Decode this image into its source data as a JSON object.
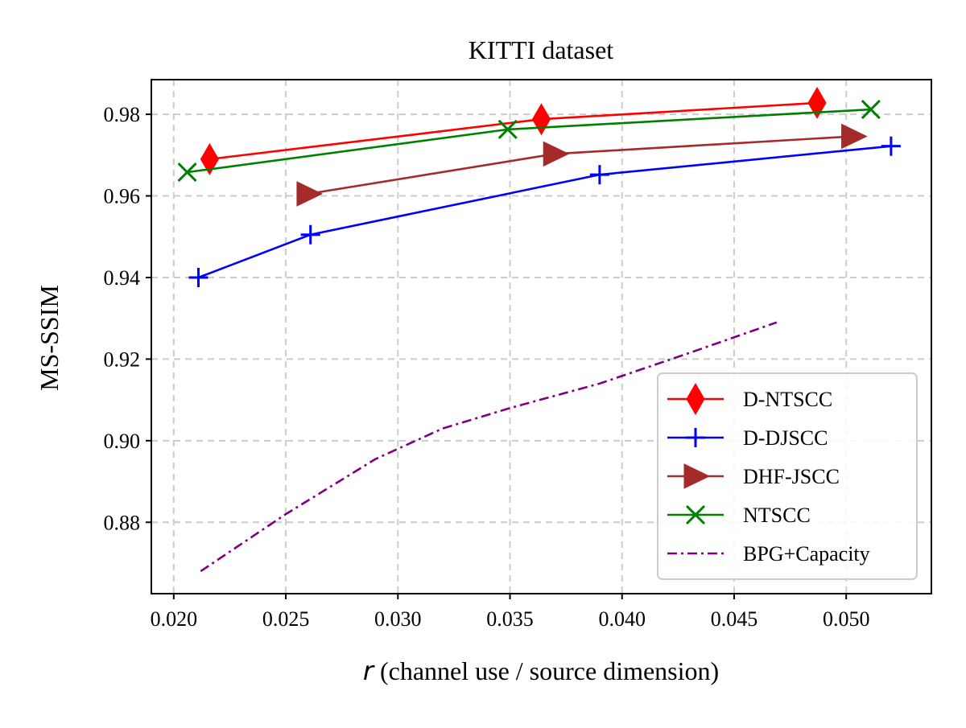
{
  "chart_data": {
    "type": "line",
    "title": "KITTI dataset",
    "xlabel_var": "r",
    "xlabel_rest": " (channel use / source dimension)",
    "ylabel": "MS-SSIM",
    "xlim": [
      0.019,
      0.0538
    ],
    "ylim": [
      0.8625,
      0.9885
    ],
    "xticks": [
      0.02,
      0.025,
      0.03,
      0.035,
      0.04,
      0.045,
      0.05
    ],
    "xtick_labels": [
      "0.020",
      "0.025",
      "0.030",
      "0.035",
      "0.040",
      "0.045",
      "0.050"
    ],
    "yticks": [
      0.88,
      0.9,
      0.92,
      0.94,
      0.96,
      0.98
    ],
    "ytick_labels": [
      "0.88",
      "0.90",
      "0.92",
      "0.94",
      "0.96",
      "0.98"
    ],
    "grid": true,
    "legend_position": "lower-right",
    "series": [
      {
        "name": "D-NTSCC",
        "color": "#ff0000",
        "marker": "diamond",
        "linestyle": "solid",
        "x": [
          0.0216,
          0.0364,
          0.0487
        ],
        "y": [
          0.969,
          0.9788,
          0.9828
        ]
      },
      {
        "name": "D-DJSCC",
        "color": "#0000ff",
        "marker": "plus",
        "linestyle": "solid",
        "x": [
          0.0211,
          0.0261,
          0.039,
          0.052
        ],
        "y": [
          0.94,
          0.9505,
          0.9652,
          0.9722
        ]
      },
      {
        "name": "DHF-JSCC",
        "color": "#a52a2a",
        "marker": "triangle-right",
        "linestyle": "solid",
        "x": [
          0.026,
          0.037,
          0.0503
        ],
        "y": [
          0.9605,
          0.9703,
          0.9746
        ]
      },
      {
        "name": "NTSCC",
        "color": "#008000",
        "marker": "x",
        "linestyle": "solid",
        "x": [
          0.0206,
          0.0349,
          0.0511
        ],
        "y": [
          0.9658,
          0.9763,
          0.9812
        ]
      },
      {
        "name": "BPG+Capacity",
        "color": "#800080",
        "marker": "none",
        "linestyle": "dashdot",
        "x": [
          0.0212,
          0.025,
          0.029,
          0.032,
          0.035,
          0.039,
          0.043,
          0.0469
        ],
        "y": [
          0.868,
          0.882,
          0.8955,
          0.903,
          0.908,
          0.914,
          0.9215,
          0.929
        ]
      }
    ]
  }
}
